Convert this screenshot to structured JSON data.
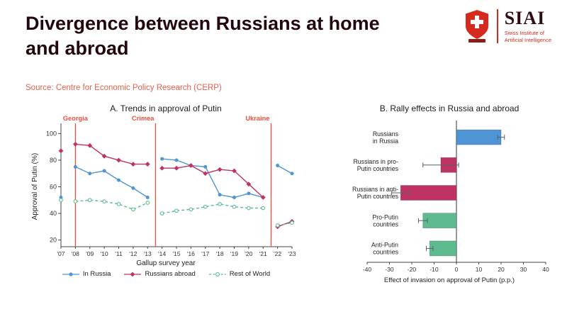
{
  "header": {
    "title": "Divergence between Russians at home and abroad",
    "source_label": "Source: Centre for Economic Policy Research (CERP)"
  },
  "logo": {
    "acronym": "SIAI",
    "subtitle_line1": "Swiss Institute of",
    "subtitle_line2": "Artificial Intelligence"
  },
  "colors": {
    "in_russia_blue": "#4f94d4",
    "abroad_crimson": "#bf3264",
    "world_green": "#5dbb8f",
    "event_red": "#f04e3e",
    "axis_gray": "#444444"
  },
  "chart_data": [
    {
      "type": "line",
      "title": "A. Trends in approval of Putin",
      "xlabel": "Gallup survey year",
      "ylabel": "Approval of Putin (%)",
      "ylim": [
        15,
        105
      ],
      "yticks": [
        20,
        40,
        60,
        80,
        100
      ],
      "categories": [
        "'07",
        "'08",
        "'09",
        "'10",
        "'11",
        "'12",
        "'13",
        "'14",
        "'15",
        "'16",
        "'17",
        "'18",
        "'19",
        "'20",
        "'21",
        "'22",
        "'23"
      ],
      "series": [
        {
          "name": "In Russia",
          "color": "#4f94d4",
          "marker": "circle",
          "dash": "solid",
          "values": [
            52,
            75,
            70,
            72,
            65,
            59,
            52,
            81,
            80,
            76,
            75,
            54,
            52,
            55,
            52,
            76,
            70
          ]
        },
        {
          "name": "Russians abroad",
          "color": "#bf3264",
          "marker": "diamond",
          "dash": "solid",
          "values": [
            87,
            92,
            91,
            83,
            80,
            77,
            77,
            74,
            74,
            76,
            70,
            73,
            72,
            62,
            52,
            30,
            34
          ]
        },
        {
          "name": "Rest of World",
          "color": "#5dbb8f",
          "marker": "open-circle",
          "dash": "dashed",
          "values": [
            50,
            49,
            50,
            49,
            47,
            43,
            48,
            40,
            42,
            43,
            45,
            47,
            45,
            44,
            44,
            31,
            33
          ]
        }
      ],
      "breaks_after_index": [
        0,
        6,
        14
      ],
      "events": [
        {
          "label": "Georgia",
          "x_index": 1,
          "align": "middle"
        },
        {
          "label": "Crimea",
          "x_index": 6.55,
          "align": "end"
        },
        {
          "label": "Ukraine",
          "x_index": 14.55,
          "align": "end"
        }
      ],
      "legend_position": "bottom"
    },
    {
      "type": "bar",
      "orientation": "horizontal",
      "title": "B. Rally effects in Russia and abroad",
      "xlabel": "Effect of invasion on approval of Putin (p.p.)",
      "xlim": [
        -40,
        40
      ],
      "xticks": [
        -40,
        -30,
        -20,
        -10,
        0,
        10,
        20,
        30,
        40
      ],
      "categories": [
        [
          "Russians",
          "in Russia"
        ],
        [
          "Russians in pro-",
          "Putin countries"
        ],
        [
          "Russians in anti-",
          "Putin countries"
        ],
        [
          "Pro-Putin",
          "countries"
        ],
        [
          "Anti-Putin",
          "countries"
        ]
      ],
      "values": [
        20,
        -7,
        -25,
        -15,
        -12
      ],
      "ci": [
        [
          18.5,
          21.5
        ],
        [
          -15,
          1
        ],
        [
          -29,
          -21
        ],
        [
          -17,
          -13
        ],
        [
          -13.5,
          -10.5
        ]
      ],
      "bar_colors": [
        "#4f94d4",
        "#bf3264",
        "#bf3264",
        "#5dbb8f",
        "#5dbb8f"
      ]
    }
  ]
}
